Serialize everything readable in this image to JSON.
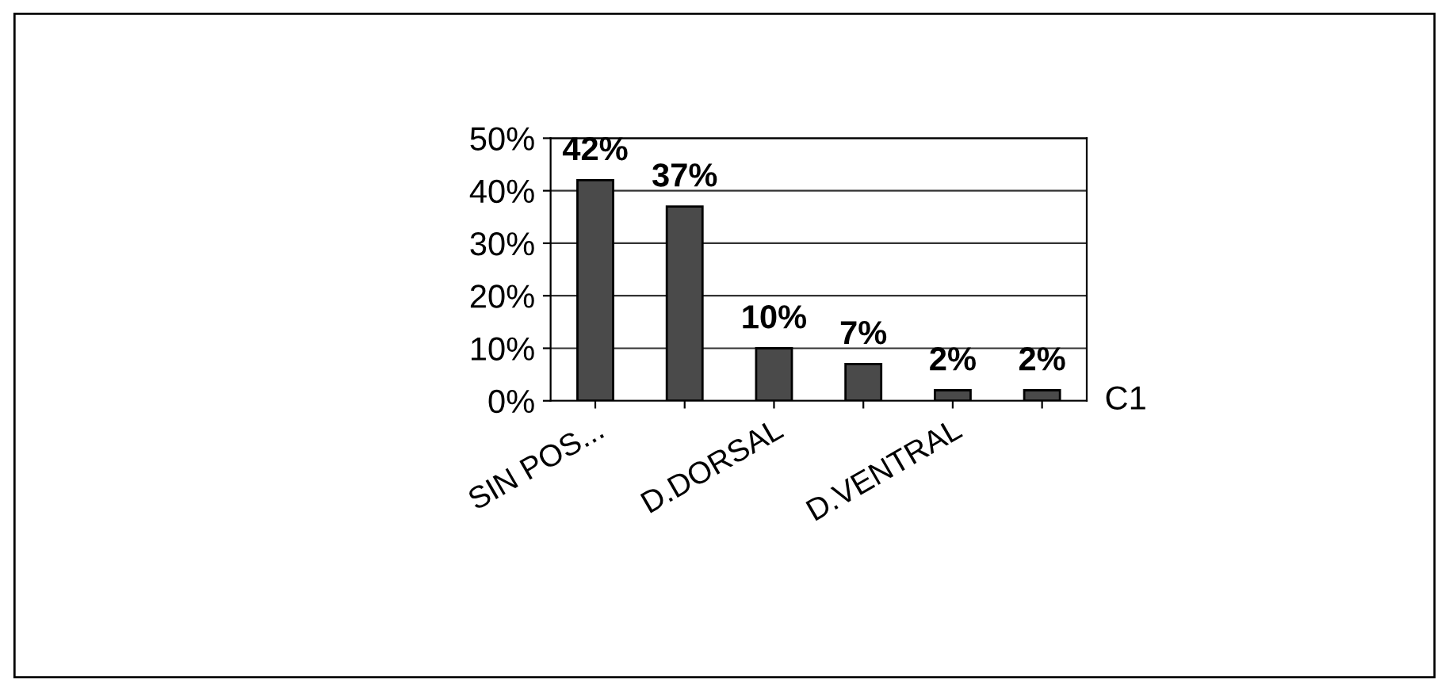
{
  "chart_data": {
    "type": "bar",
    "categories": [
      "SIN POS...",
      null,
      "D.DORSAL",
      null,
      "D.VENTRAL",
      null
    ],
    "series": [
      {
        "name": "C1",
        "color": "#4a4a4a",
        "values": [
          42,
          37,
          10,
          7,
          2,
          2
        ],
        "value_labels": [
          "42%",
          "37%",
          "10%",
          "7%",
          "2%",
          "2%"
        ]
      }
    ],
    "ylim": [
      0,
      50
    ],
    "yticks": [
      {
        "value": 0,
        "label": "0%"
      },
      {
        "value": 10,
        "label": "10%"
      },
      {
        "value": 20,
        "label": "20%"
      },
      {
        "value": 30,
        "label": "30%"
      },
      {
        "value": 40,
        "label": "40%"
      },
      {
        "value": 50,
        "label": "50%"
      }
    ],
    "grid": "y"
  }
}
